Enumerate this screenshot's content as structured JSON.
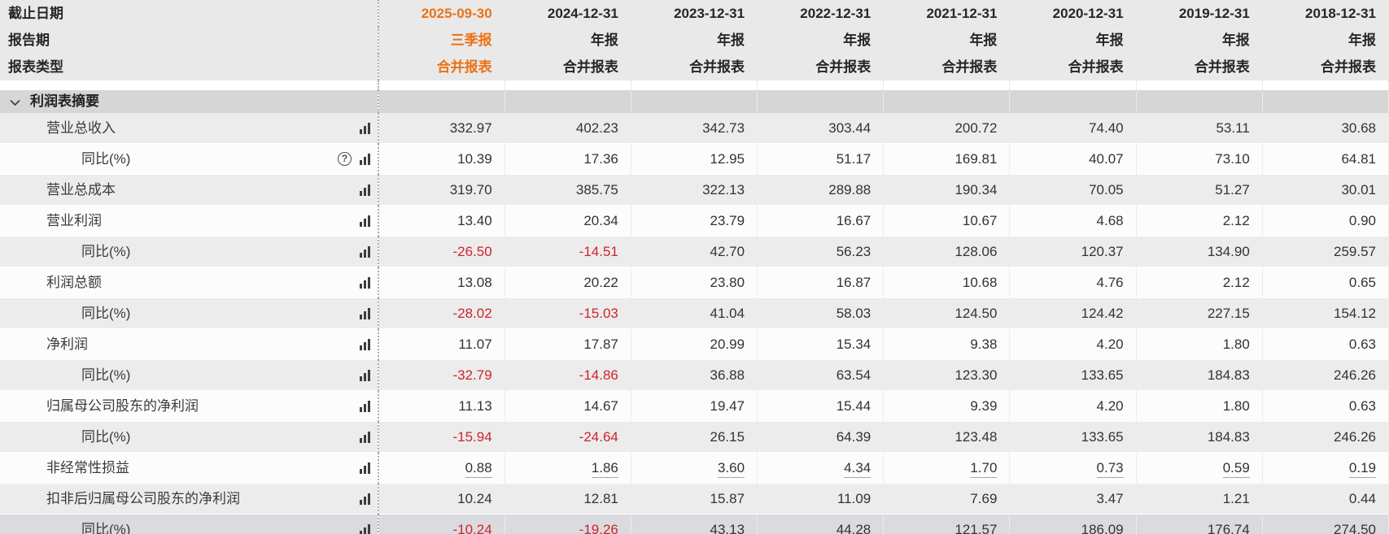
{
  "colors": {
    "accent_orange": "#ea7216",
    "negative_red": "#d0232b",
    "header_bg": "#e9e9e9",
    "section_bg": "#d6d6d6",
    "row_gray": "#ececec",
    "row_white": "#fcfcfc",
    "row_hover": "#dbdbdf"
  },
  "icons": {
    "help_glyph": "?",
    "bar_chart_icon": "bar-chart",
    "chevron_icon": "chevron-down"
  },
  "header": {
    "highlight_col": 0,
    "rows": [
      {
        "label": "截止日期",
        "values": [
          "2025-09-30",
          "2024-12-31",
          "2023-12-31",
          "2022-12-31",
          "2021-12-31",
          "2020-12-31",
          "2019-12-31",
          "2018-12-31"
        ]
      },
      {
        "label": "报告期",
        "values": [
          "三季报",
          "年报",
          "年报",
          "年报",
          "年报",
          "年报",
          "年报",
          "年报"
        ]
      },
      {
        "label": "报表类型",
        "values": [
          "合并报表",
          "合并报表",
          "合并报表",
          "合并报表",
          "合并报表",
          "合并报表",
          "合并报表",
          "合并报表"
        ]
      }
    ]
  },
  "section": {
    "title": "利润表摘要"
  },
  "table": {
    "rows": [
      {
        "label": "营业总收入",
        "indent": 1,
        "help": false,
        "underline": false,
        "bg": "gray",
        "values": [
          "332.97",
          "402.23",
          "342.73",
          "303.44",
          "200.72",
          "74.40",
          "53.11",
          "30.68"
        ]
      },
      {
        "label": "同比(%)",
        "indent": 2,
        "help": true,
        "underline": false,
        "bg": "white",
        "values": [
          "10.39",
          "17.36",
          "12.95",
          "51.17",
          "169.81",
          "40.07",
          "73.10",
          "64.81"
        ]
      },
      {
        "label": "营业总成本",
        "indent": 1,
        "help": false,
        "underline": false,
        "bg": "gray",
        "values": [
          "319.70",
          "385.75",
          "322.13",
          "289.88",
          "190.34",
          "70.05",
          "51.27",
          "30.01"
        ]
      },
      {
        "label": "营业利润",
        "indent": 1,
        "help": false,
        "underline": false,
        "bg": "white",
        "values": [
          "13.40",
          "20.34",
          "23.79",
          "16.67",
          "10.67",
          "4.68",
          "2.12",
          "0.90"
        ]
      },
      {
        "label": "同比(%)",
        "indent": 2,
        "help": false,
        "underline": false,
        "bg": "gray",
        "values": [
          "-26.50",
          "-14.51",
          "42.70",
          "56.23",
          "128.06",
          "120.37",
          "134.90",
          "259.57"
        ]
      },
      {
        "label": "利润总额",
        "indent": 1,
        "help": false,
        "underline": false,
        "bg": "white",
        "values": [
          "13.08",
          "20.22",
          "23.80",
          "16.87",
          "10.68",
          "4.76",
          "2.12",
          "0.65"
        ]
      },
      {
        "label": "同比(%)",
        "indent": 2,
        "help": false,
        "underline": false,
        "bg": "gray",
        "values": [
          "-28.02",
          "-15.03",
          "41.04",
          "58.03",
          "124.50",
          "124.42",
          "227.15",
          "154.12"
        ]
      },
      {
        "label": "净利润",
        "indent": 1,
        "help": false,
        "underline": false,
        "bg": "white",
        "values": [
          "11.07",
          "17.87",
          "20.99",
          "15.34",
          "9.38",
          "4.20",
          "1.80",
          "0.63"
        ]
      },
      {
        "label": "同比(%)",
        "indent": 2,
        "help": false,
        "underline": false,
        "bg": "gray",
        "values": [
          "-32.79",
          "-14.86",
          "36.88",
          "63.54",
          "123.30",
          "133.65",
          "184.83",
          "246.26"
        ]
      },
      {
        "label": "归属母公司股东的净利润",
        "indent": 1,
        "help": false,
        "underline": false,
        "bg": "white",
        "values": [
          "11.13",
          "14.67",
          "19.47",
          "15.44",
          "9.39",
          "4.20",
          "1.80",
          "0.63"
        ]
      },
      {
        "label": "同比(%)",
        "indent": 2,
        "help": false,
        "underline": false,
        "bg": "gray",
        "values": [
          "-15.94",
          "-24.64",
          "26.15",
          "64.39",
          "123.48",
          "133.65",
          "184.83",
          "246.26"
        ]
      },
      {
        "label": "非经常性损益",
        "indent": 1,
        "help": false,
        "underline": true,
        "bg": "white",
        "values": [
          "0.88",
          "1.86",
          "3.60",
          "4.34",
          "1.70",
          "0.73",
          "0.59",
          "0.19"
        ]
      },
      {
        "label": "扣非后归属母公司股东的净利润",
        "indent": 1,
        "help": false,
        "underline": false,
        "bg": "gray",
        "values": [
          "10.24",
          "12.81",
          "15.87",
          "11.09",
          "7.69",
          "3.47",
          "1.21",
          "0.44"
        ]
      },
      {
        "label": "同比(%)",
        "indent": 2,
        "help": false,
        "underline": false,
        "bg": "hover",
        "values": [
          "-10.24",
          "-19.26",
          "43.13",
          "44.28",
          "121.57",
          "186.09",
          "176.74",
          "274.50"
        ]
      }
    ]
  }
}
